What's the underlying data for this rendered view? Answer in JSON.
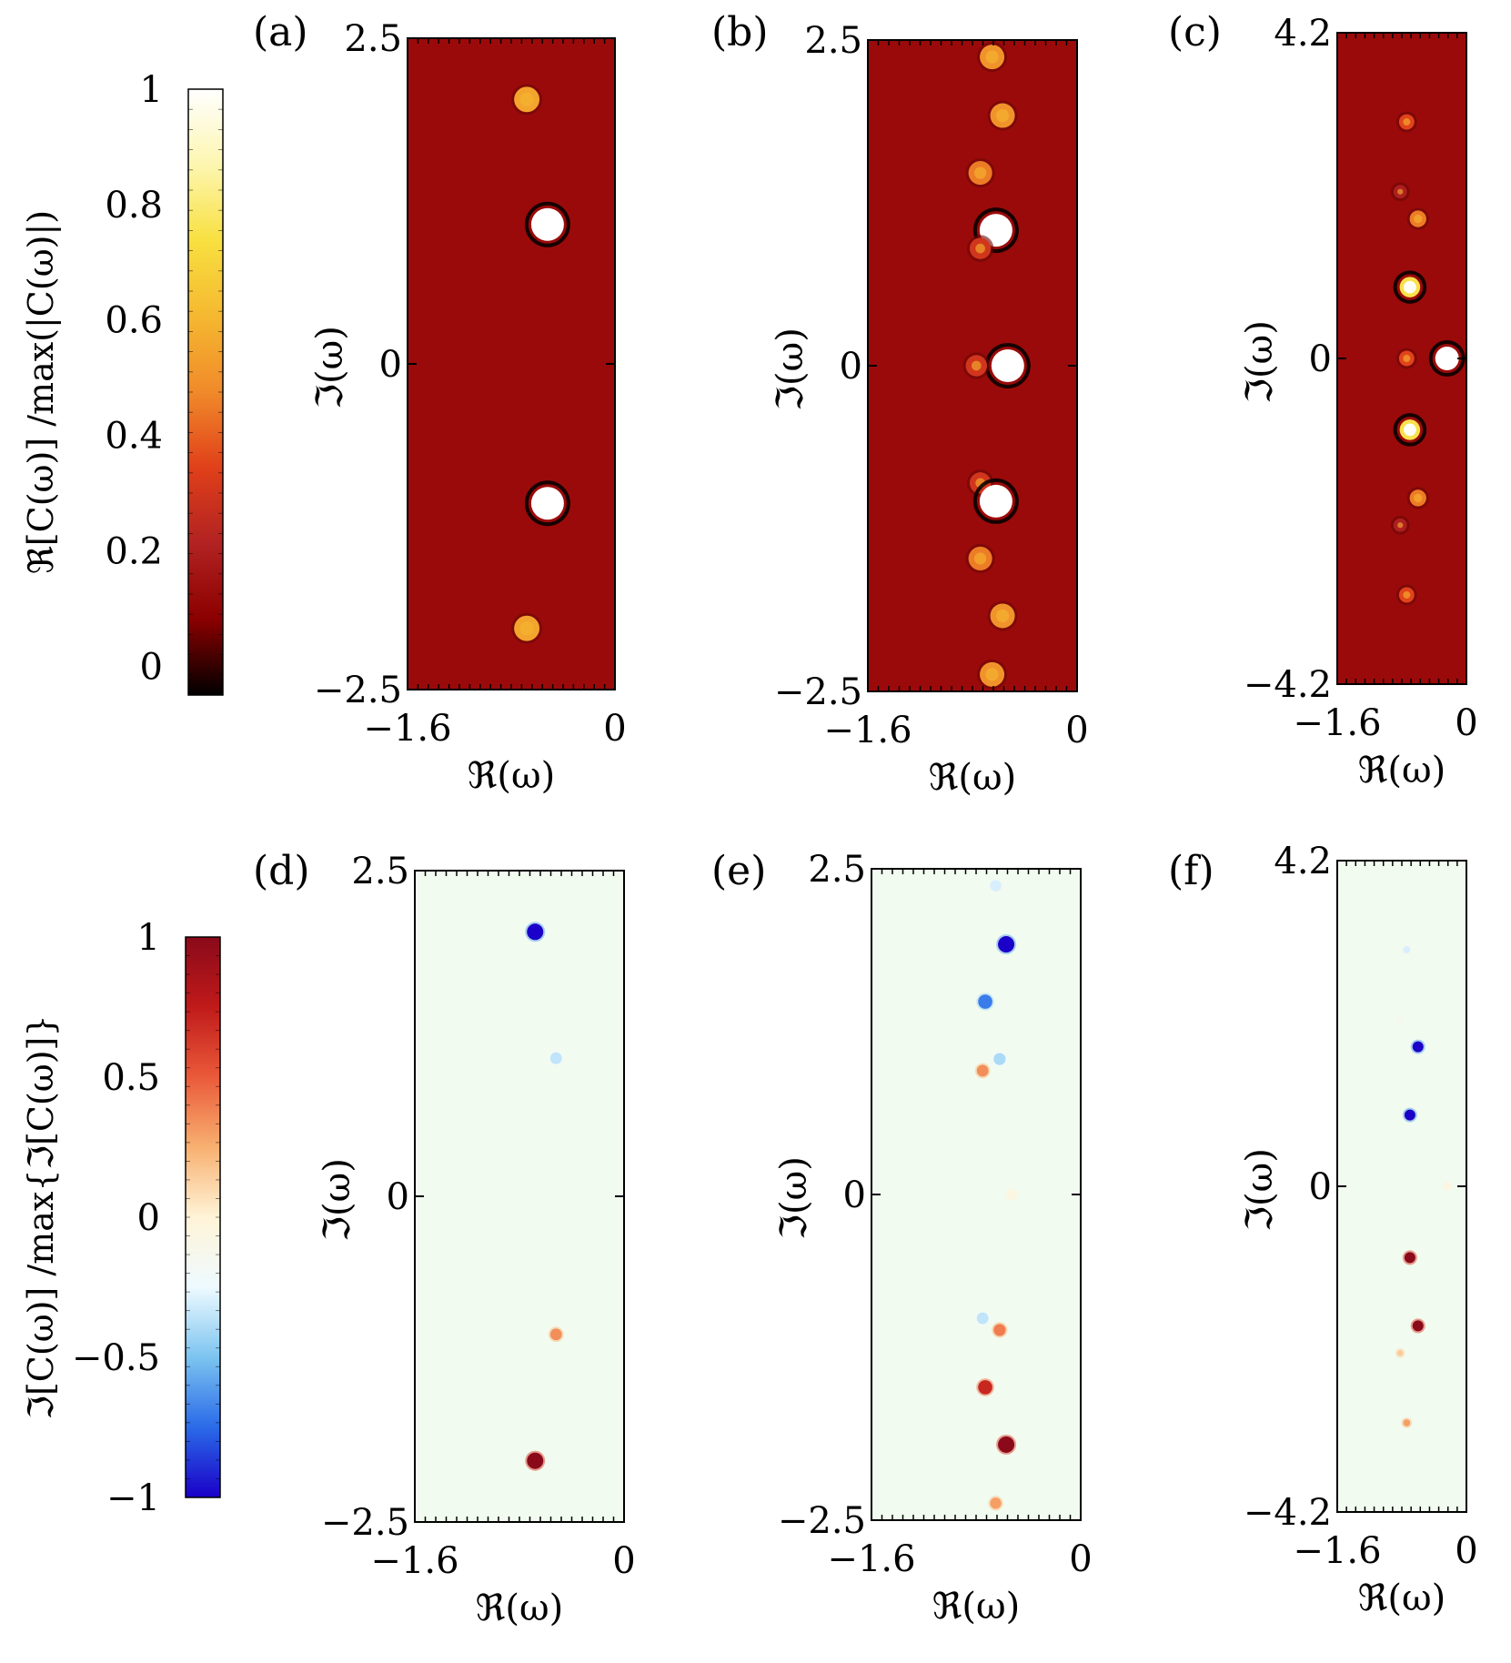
{
  "colors": {
    "real_map": [
      "#000000",
      "#8b0000",
      "#b22222",
      "#e0401a",
      "#f08a2a",
      "#f5b830",
      "#f8e040",
      "#fdf6b0",
      "#ffffff"
    ],
    "real_background": "#9b0a0a",
    "imag_map": [
      "#1a00c8",
      "#2a6ae8",
      "#7cc4f0",
      "#eefaff",
      "#fff4d8",
      "#f8b070",
      "#ea5a3a",
      "#c01a1a",
      "#8a0a1a"
    ],
    "imag_background": "#f2fbf0"
  },
  "colorbars": [
    {
      "id": "real",
      "label": "ℜ[C(ω)] /max(|C(ω)|)",
      "ticks": [
        {
          "value": 1,
          "label": "1"
        },
        {
          "value": 0.8,
          "label": "0.8"
        },
        {
          "value": 0.6,
          "label": "0.6"
        },
        {
          "value": 0.4,
          "label": "0.4"
        },
        {
          "value": 0.2,
          "label": "0.2"
        },
        {
          "value": 0,
          "label": "0"
        }
      ],
      "range": [
        -0.05,
        1
      ]
    },
    {
      "id": "imag",
      "label": "ℑ[C(ω)] /max{ℑ[C(ω)]}",
      "ticks": [
        {
          "value": 1,
          "label": "1"
        },
        {
          "value": 0.5,
          "label": "0.5"
        },
        {
          "value": 0,
          "label": "0"
        },
        {
          "value": -0.5,
          "label": "−0.5"
        },
        {
          "value": -1,
          "label": "−1"
        }
      ],
      "range": [
        -1,
        1
      ]
    }
  ],
  "chart_data": [
    {
      "type": "heatmap",
      "panel_label": "(a)",
      "colormap": "real",
      "xlabel": "ℜ(ω)",
      "ylabel": "ℑ(ω)",
      "xlim": [
        -1.6,
        0
      ],
      "ylim": [
        -2.5,
        2.5
      ],
      "x_tick_labels": [
        "−1.6",
        "0"
      ],
      "y_tick_labels": [
        "2.5",
        "0",
        "−2.5"
      ],
      "spots": [
        {
          "x": -0.68,
          "y": 2.03,
          "value": 0.55
        },
        {
          "x": -0.52,
          "y": 1.07,
          "value": 1.0
        },
        {
          "x": -0.52,
          "y": -1.07,
          "value": 1.0
        },
        {
          "x": -0.68,
          "y": -2.03,
          "value": 0.55
        }
      ]
    },
    {
      "type": "heatmap",
      "panel_label": "(b)",
      "colormap": "real",
      "xlabel": "ℜ(ω)",
      "ylabel": "ℑ(ω)",
      "xlim": [
        -1.6,
        0
      ],
      "ylim": [
        -2.5,
        2.5
      ],
      "x_tick_labels": [
        "−1.6",
        "0"
      ],
      "y_tick_labels": [
        "2.5",
        "0",
        "−2.5"
      ],
      "spots": [
        {
          "x": -0.65,
          "y": 2.37,
          "value": 0.5
        },
        {
          "x": -0.57,
          "y": 1.92,
          "value": 0.5
        },
        {
          "x": -0.74,
          "y": 1.48,
          "value": 0.45
        },
        {
          "x": -0.62,
          "y": 1.04,
          "value": 1.0
        },
        {
          "x": -0.74,
          "y": 0.9,
          "value": 0.3
        },
        {
          "x": -0.53,
          "y": 0.0,
          "value": 1.0
        },
        {
          "x": -0.77,
          "y": 0.0,
          "value": 0.3
        },
        {
          "x": -0.74,
          "y": -0.9,
          "value": 0.3
        },
        {
          "x": -0.62,
          "y": -1.04,
          "value": 1.0
        },
        {
          "x": -0.74,
          "y": -1.48,
          "value": 0.45
        },
        {
          "x": -0.57,
          "y": -1.92,
          "value": 0.5
        },
        {
          "x": -0.65,
          "y": -2.37,
          "value": 0.5
        }
      ]
    },
    {
      "type": "heatmap",
      "panel_label": "(c)",
      "colormap": "real",
      "xlabel": "ℜ(ω)",
      "ylabel": "ℑ(ω)",
      "xlim": [
        -1.6,
        0
      ],
      "ylim": [
        -4.2,
        4.2
      ],
      "x_tick_labels": [
        "−1.6",
        "0"
      ],
      "y_tick_labels": [
        "4.2",
        "0",
        "−4.2"
      ],
      "spots": [
        {
          "x": -0.74,
          "y": 3.05,
          "value": 0.35
        },
        {
          "x": -0.82,
          "y": 2.15,
          "value": 0.2
        },
        {
          "x": -0.6,
          "y": 1.8,
          "value": 0.45
        },
        {
          "x": -0.7,
          "y": 0.92,
          "value": 0.75
        },
        {
          "x": -0.74,
          "y": 0.0,
          "value": 0.35
        },
        {
          "x": -0.24,
          "y": 0.0,
          "value": 1.0
        },
        {
          "x": -0.7,
          "y": -0.92,
          "value": 0.75
        },
        {
          "x": -0.6,
          "y": -1.8,
          "value": 0.45
        },
        {
          "x": -0.82,
          "y": -2.15,
          "value": 0.2
        },
        {
          "x": -0.74,
          "y": -3.05,
          "value": 0.35
        }
      ]
    },
    {
      "type": "heatmap",
      "panel_label": "(d)",
      "colormap": "imag",
      "xlabel": "ℜ(ω)",
      "ylabel": "ℑ(ω)",
      "xlim": [
        -1.6,
        0
      ],
      "ylim": [
        -2.5,
        2.5
      ],
      "x_tick_labels": [
        "−1.6",
        "0"
      ],
      "y_tick_labels": [
        "2.5",
        "0",
        "−2.5"
      ],
      "spots": [
        {
          "x": -0.68,
          "y": 2.03,
          "value": -1.0
        },
        {
          "x": -0.52,
          "y": 1.06,
          "value": -0.35
        },
        {
          "x": -0.52,
          "y": -1.06,
          "value": 0.35
        },
        {
          "x": -0.68,
          "y": -2.03,
          "value": 1.0
        }
      ]
    },
    {
      "type": "heatmap",
      "panel_label": "(e)",
      "colormap": "imag",
      "xlabel": "ℜ(ω)",
      "ylabel": "ℑ(ω)",
      "xlim": [
        -1.6,
        0
      ],
      "ylim": [
        -2.5,
        2.5
      ],
      "x_tick_labels": [
        "−1.6",
        "0"
      ],
      "y_tick_labels": [
        "2.5",
        "0",
        "−2.5"
      ],
      "spots": [
        {
          "x": -0.65,
          "y": 2.37,
          "value": -0.3
        },
        {
          "x": -0.57,
          "y": 1.92,
          "value": -1.0
        },
        {
          "x": -0.73,
          "y": 1.48,
          "value": -0.7
        },
        {
          "x": -0.62,
          "y": 1.04,
          "value": -0.4
        },
        {
          "x": -0.75,
          "y": 0.95,
          "value": 0.35
        },
        {
          "x": -0.53,
          "y": 0.0,
          "value": -0.05
        },
        {
          "x": -0.75,
          "y": -0.95,
          "value": -0.35
        },
        {
          "x": -0.62,
          "y": -1.04,
          "value": 0.4
        },
        {
          "x": -0.73,
          "y": -1.48,
          "value": 0.7
        },
        {
          "x": -0.57,
          "y": -1.92,
          "value": 1.0
        },
        {
          "x": -0.65,
          "y": -2.37,
          "value": 0.3
        }
      ]
    },
    {
      "type": "heatmap",
      "panel_label": "(f)",
      "colormap": "imag",
      "xlabel": "ℜ(ω)",
      "ylabel": "ℑ(ω)",
      "xlim": [
        -1.6,
        0
      ],
      "ylim": [
        -4.2,
        4.2
      ],
      "x_tick_labels": [
        "−1.6",
        "0"
      ],
      "y_tick_labels": [
        "4.2",
        "0",
        "−4.2"
      ],
      "spots": [
        {
          "x": -0.74,
          "y": 3.05,
          "value": -0.3
        },
        {
          "x": -0.82,
          "y": 2.15,
          "value": -0.15
        },
        {
          "x": -0.6,
          "y": 1.8,
          "value": -1.0
        },
        {
          "x": -0.7,
          "y": 0.92,
          "value": -1.0
        },
        {
          "x": -0.24,
          "y": 0.0,
          "value": -0.03
        },
        {
          "x": -0.7,
          "y": -0.92,
          "value": 1.0
        },
        {
          "x": -0.6,
          "y": -1.8,
          "value": 1.0
        },
        {
          "x": -0.82,
          "y": -2.15,
          "value": 0.15
        },
        {
          "x": -0.74,
          "y": -3.05,
          "value": 0.3
        }
      ]
    }
  ]
}
